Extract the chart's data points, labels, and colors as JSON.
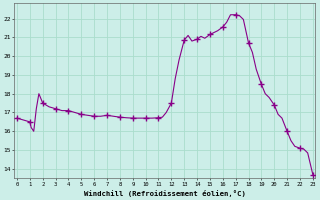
{
  "hours": [
    0,
    0.5,
    1,
    1.1,
    1.3,
    1.5,
    1.7,
    2,
    2.5,
    3,
    3.5,
    4,
    4.5,
    5,
    5.5,
    6,
    6.5,
    7,
    7.5,
    8,
    8.5,
    9,
    9.5,
    10,
    10.5,
    11,
    11.3,
    11.6,
    12,
    12.3,
    12.6,
    13,
    13.3,
    13.6,
    14,
    14.3,
    14.6,
    15,
    15.3,
    15.6,
    16,
    16.3,
    16.6,
    17,
    17.3,
    17.6,
    18,
    18.3,
    18.6,
    19,
    19.3,
    19.6,
    20,
    20.3,
    20.6,
    21,
    21.3,
    21.6,
    22,
    22.3,
    22.6,
    23
  ],
  "values": [
    16.7,
    16.6,
    16.5,
    16.2,
    16.0,
    17.2,
    18.0,
    17.5,
    17.3,
    17.2,
    17.1,
    17.1,
    17.0,
    16.9,
    16.85,
    16.8,
    16.8,
    16.85,
    16.8,
    16.75,
    16.72,
    16.7,
    16.7,
    16.7,
    16.7,
    16.72,
    16.75,
    17.0,
    17.5,
    18.8,
    19.8,
    20.85,
    21.1,
    20.8,
    20.9,
    21.05,
    20.95,
    21.15,
    21.25,
    21.35,
    21.55,
    21.8,
    22.2,
    22.2,
    22.15,
    21.95,
    20.7,
    20.2,
    19.3,
    18.5,
    18.0,
    17.8,
    17.4,
    16.9,
    16.7,
    16.0,
    15.5,
    15.2,
    15.1,
    15.05,
    14.85,
    13.7
  ],
  "marker_hours": [
    0,
    1,
    2,
    3,
    4,
    5,
    6,
    7,
    8,
    9,
    10,
    11,
    12,
    13,
    14,
    15,
    16,
    17,
    18,
    19,
    20,
    21,
    22,
    23
  ],
  "line_color": "#880088",
  "bg_color": "#cceee8",
  "grid_color": "#aaddcc",
  "xlabel": "Windchill (Refroidissement éolien,°C)",
  "ylim": [
    13.5,
    22.8
  ],
  "xlim": [
    -0.2,
    23.2
  ],
  "yticks": [
    14,
    15,
    16,
    17,
    18,
    19,
    20,
    21,
    22
  ],
  "xticks": [
    0,
    1,
    2,
    3,
    4,
    5,
    6,
    7,
    8,
    9,
    10,
    11,
    12,
    13,
    14,
    15,
    16,
    17,
    18,
    19,
    20,
    21,
    22,
    23
  ]
}
